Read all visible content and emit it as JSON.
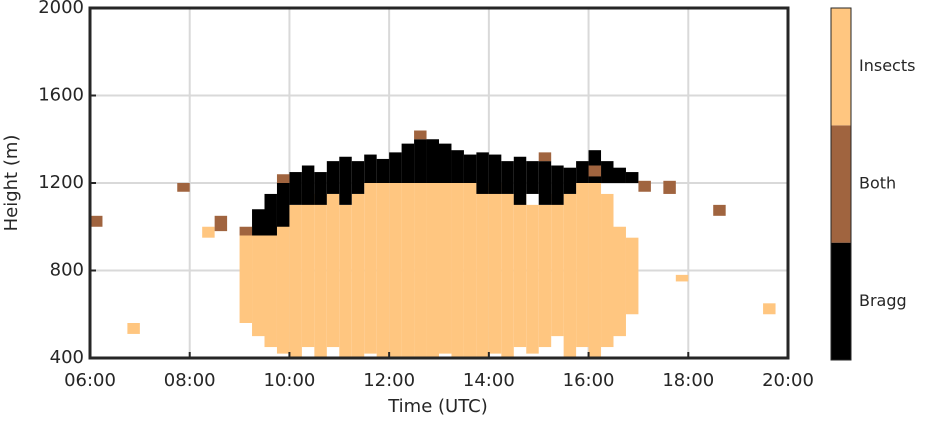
{
  "chart_data": {
    "type": "range-heatmap",
    "xlabel": "Time (UTC)",
    "ylabel": "Height (m)",
    "xlim": [
      6,
      20
    ],
    "xticks": [
      {
        "value": 6,
        "label": "06:00"
      },
      {
        "value": 8,
        "label": "08:00"
      },
      {
        "value": 10,
        "label": "10:00"
      },
      {
        "value": 12,
        "label": "12:00"
      },
      {
        "value": 14,
        "label": "14:00"
      },
      {
        "value": 16,
        "label": "16:00"
      },
      {
        "value": 18,
        "label": "18:00"
      },
      {
        "value": 20,
        "label": "20:00"
      }
    ],
    "ylim": [
      400,
      2000
    ],
    "yticks": [
      400,
      800,
      1200,
      1600,
      2000
    ],
    "grid": true,
    "series": [
      {
        "name": "Bragg",
        "color": "#000000",
        "x": [
          9.25,
          9.5,
          9.75,
          10,
          10.25,
          10.5,
          10.75,
          11,
          11.25,
          11.5,
          11.75,
          12,
          12.25,
          12.5,
          12.75,
          13,
          13.25,
          13.5,
          13.75,
          14,
          14.25,
          14.5,
          14.75,
          15,
          15.25,
          15.5,
          15.75,
          16,
          16.25,
          16.5,
          16.75
        ],
        "low": [
          960,
          960,
          1000,
          1100,
          1100,
          1100,
          1150,
          1100,
          1150,
          1200,
          1200,
          1200,
          1200,
          1200,
          1200,
          1200,
          1200,
          1200,
          1150,
          1150,
          1150,
          1100,
          1150,
          1100,
          1100,
          1150,
          1200,
          1200,
          1200,
          1200,
          1200
        ],
        "high": [
          1080,
          1150,
          1200,
          1250,
          1280,
          1250,
          1300,
          1320,
          1300,
          1330,
          1310,
          1340,
          1380,
          1400,
          1400,
          1380,
          1350,
          1330,
          1340,
          1330,
          1300,
          1320,
          1300,
          1300,
          1280,
          1270,
          1300,
          1350,
          1300,
          1270,
          1250
        ]
      },
      {
        "name": "Both",
        "color": "#a0643f",
        "x": [
          6,
          7.75,
          8.5,
          9,
          9.75,
          12.5,
          15,
          16,
          17,
          17.5,
          18.5
        ],
        "low": [
          1000,
          1160,
          980,
          960,
          1200,
          1400,
          1300,
          1230,
          1160,
          1150,
          1050
        ],
        "high": [
          1050,
          1200,
          1050,
          1000,
          1240,
          1440,
          1340,
          1280,
          1210,
          1210,
          1100
        ]
      },
      {
        "name": "Insects",
        "color": "#ffc680",
        "x": [
          6.75,
          8.25,
          9,
          9.25,
          9.5,
          9.75,
          10,
          10.25,
          10.5,
          10.75,
          11,
          11.25,
          11.5,
          11.75,
          12,
          12.25,
          12.5,
          12.75,
          13,
          13.25,
          13.5,
          13.75,
          14,
          14.25,
          14.5,
          14.75,
          15,
          15.25,
          15.5,
          15.75,
          16,
          16.25,
          16.5,
          16.75,
          17.75,
          19.5
        ],
        "low": [
          510,
          950,
          560,
          500,
          450,
          420,
          400,
          450,
          400,
          450,
          400,
          400,
          420,
          400,
          400,
          400,
          400,
          400,
          420,
          400,
          400,
          400,
          420,
          400,
          450,
          420,
          450,
          500,
          400,
          450,
          400,
          450,
          500,
          600,
          750,
          600
        ],
        "high": [
          560,
          1000,
          960,
          960,
          1000,
          1050,
          1100,
          1150,
          1150,
          1150,
          1100,
          1150,
          1200,
          1200,
          1200,
          1200,
          1200,
          1200,
          1200,
          1200,
          1200,
          1200,
          1200,
          1150,
          1150,
          1100,
          1100,
          1150,
          1150,
          1200,
          1200,
          1150,
          1000,
          950,
          780,
          650
        ]
      }
    ]
  }
}
